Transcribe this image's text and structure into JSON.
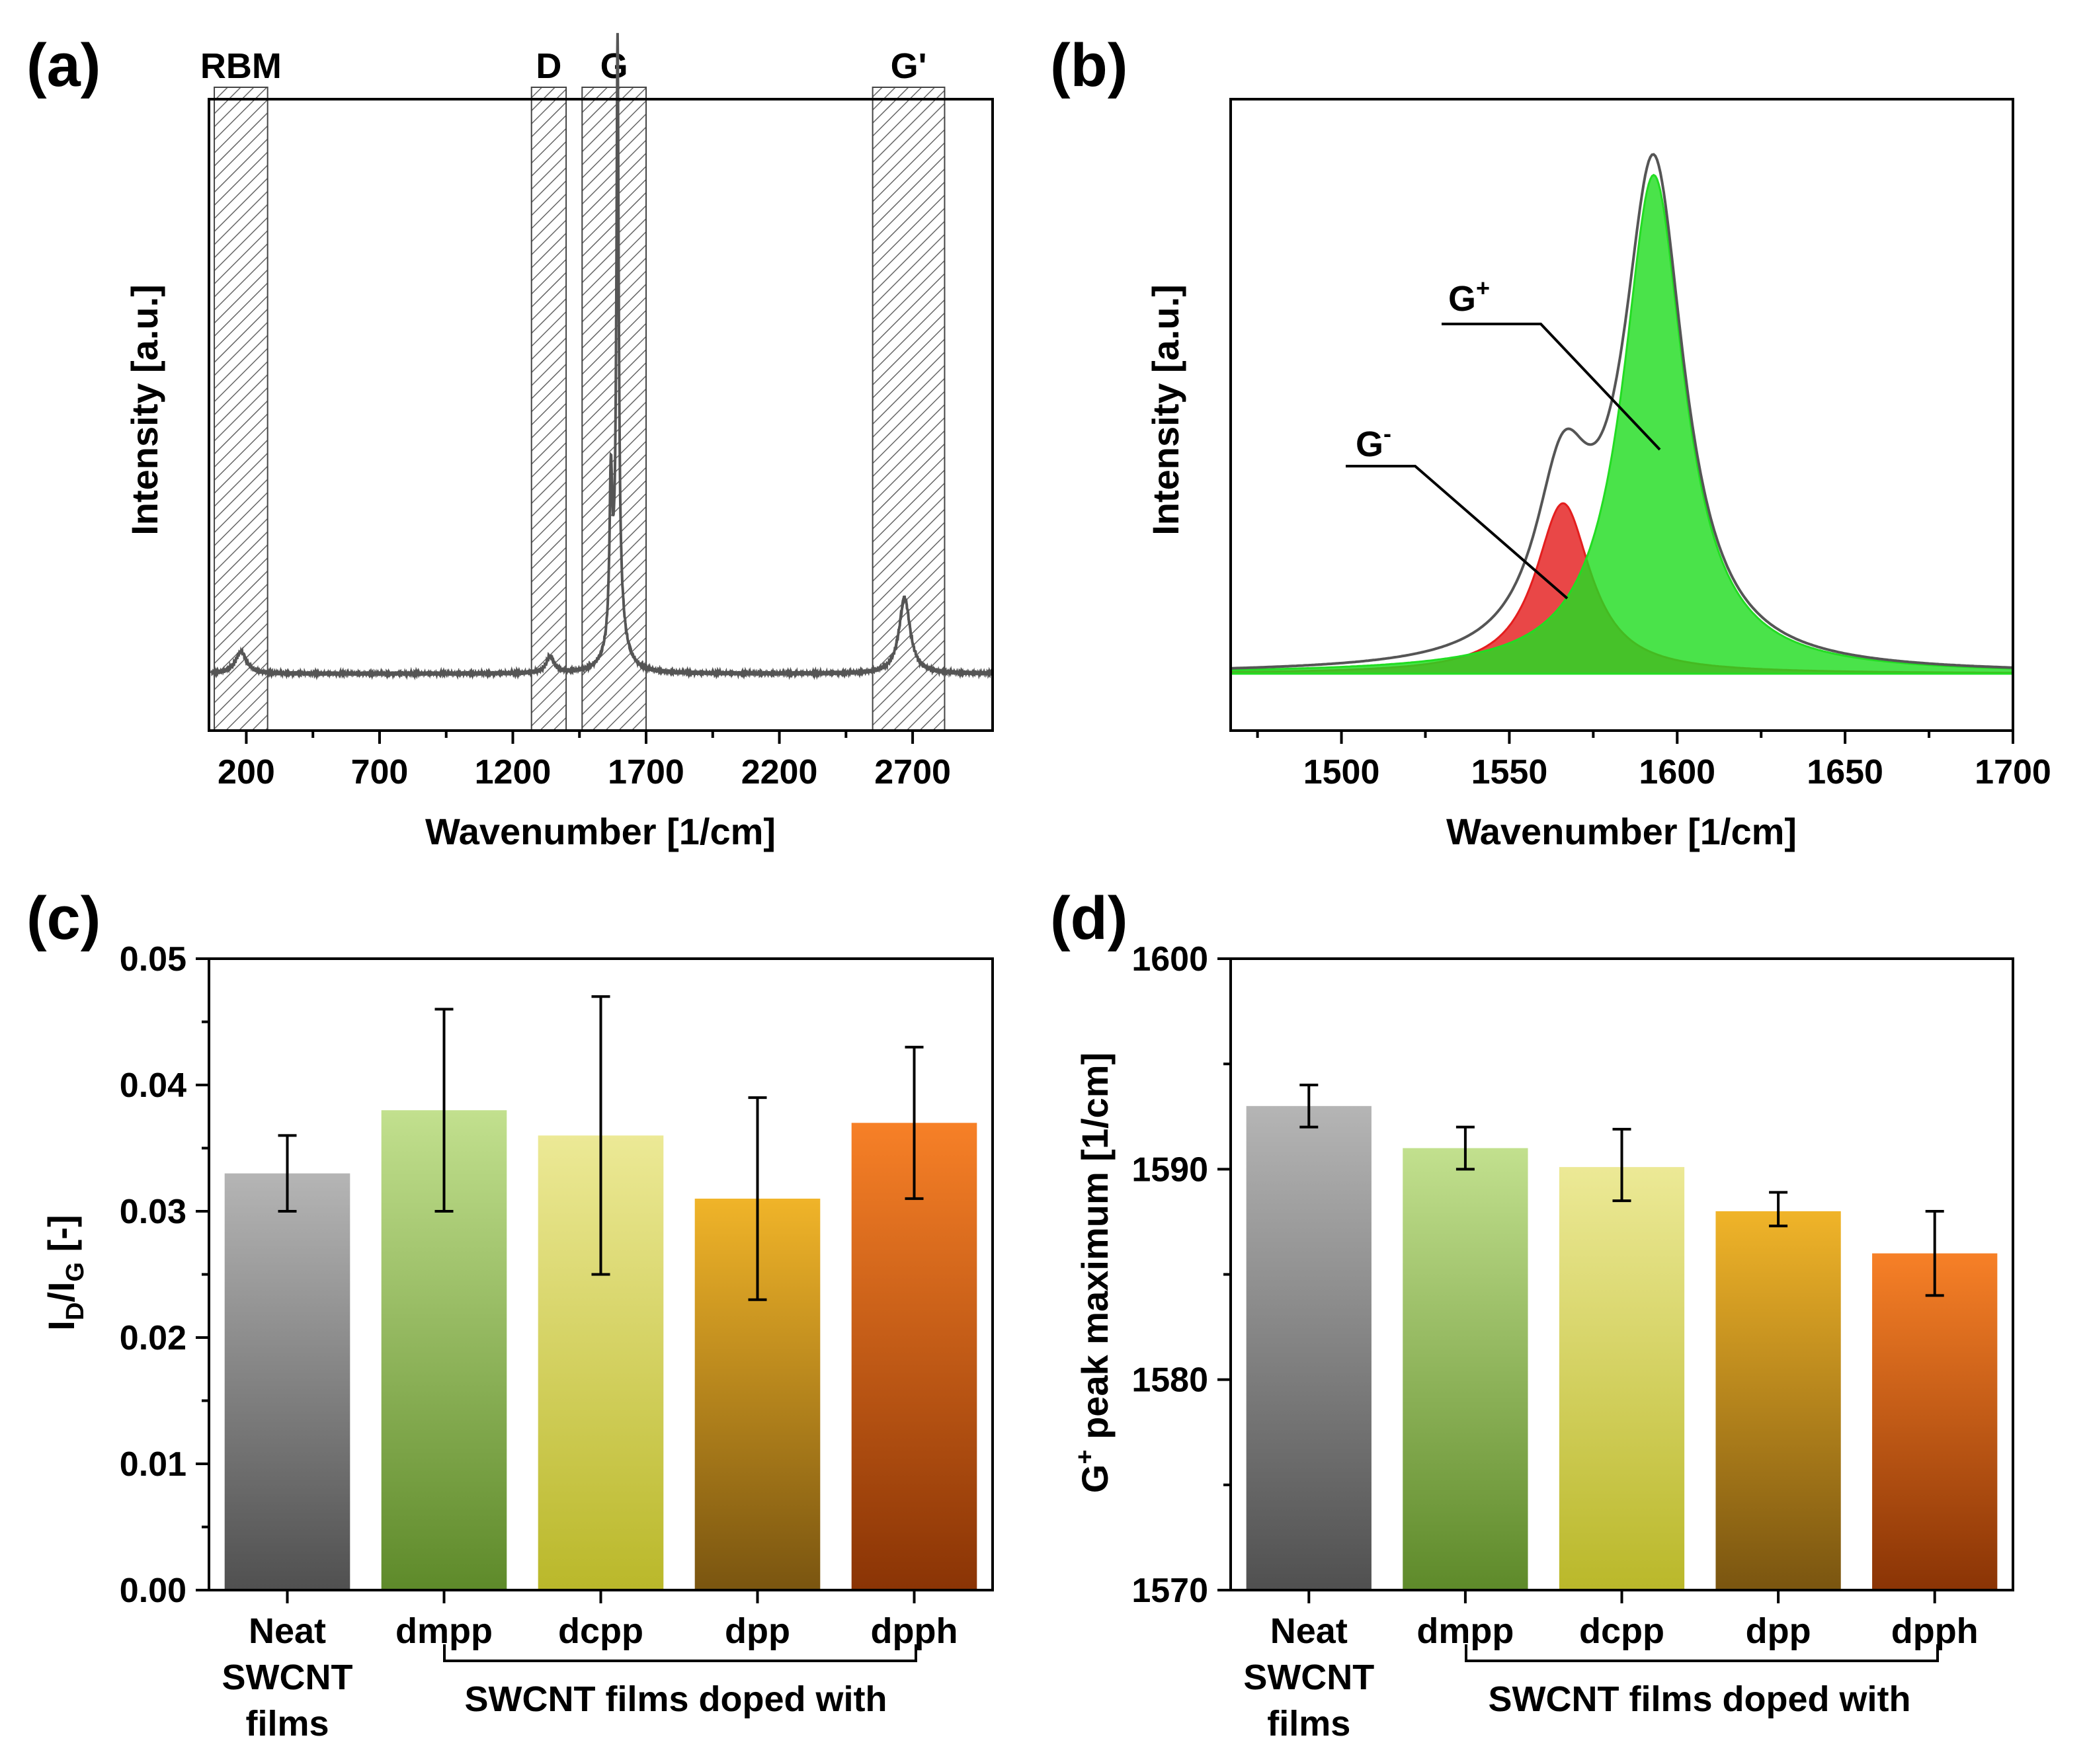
{
  "chart_data": [
    {
      "id": "a",
      "panel_label": "(a)",
      "type": "line",
      "xlabel": "Wavenumber [1/cm]",
      "ylabel": "Intensity [a.u.]",
      "xlim": [
        60,
        3000
      ],
      "ylim": [
        0,
        1.0
      ],
      "xticks": [
        200,
        700,
        1200,
        1700,
        2200,
        2700
      ],
      "shaded_regions": [
        {
          "label": "RBM",
          "x0": 80,
          "x1": 280
        },
        {
          "label": "D",
          "x0": 1270,
          "x1": 1400
        },
        {
          "label": "G",
          "x0": 1460,
          "x1": 1700
        },
        {
          "label": "G'",
          "x0": 2550,
          "x1": 2820
        }
      ],
      "peaks": [
        {
          "x": 180,
          "height": 0.035,
          "width": 25
        },
        {
          "x": 1340,
          "height": 0.025,
          "width": 18
        },
        {
          "x": 1568,
          "height": 0.24,
          "width": 6
        },
        {
          "x": 1593,
          "height": 0.88,
          "width": 5
        },
        {
          "x": 1590,
          "height": 0.12,
          "width": 28
        },
        {
          "x": 2670,
          "height": 0.12,
          "width": 25
        }
      ],
      "baseline": 0.09
    },
    {
      "id": "b",
      "panel_label": "(b)",
      "type": "area",
      "xlabel": "Wavenumber [1/cm]",
      "ylabel": "Intensity [a.u.]",
      "xlim": [
        1467,
        1700
      ],
      "ylim": [
        0,
        1.0
      ],
      "xticks": [
        1500,
        1550,
        1600,
        1650,
        1700
      ],
      "baseline": 0.09,
      "series": [
        {
          "name": "G-",
          "center": 1566,
          "height": 0.27,
          "hwhm": 10,
          "color": "#e41e1e"
        },
        {
          "name": "G+",
          "center": 1593,
          "height": 0.79,
          "hwhm": 11,
          "color": "#22dd22"
        }
      ],
      "annotations": [
        {
          "label": "G",
          "sup": "+"
        },
        {
          "label": "G",
          "sup": "-"
        }
      ]
    },
    {
      "id": "c",
      "panel_label": "(c)",
      "type": "bar",
      "ylabel_main": "I",
      "ylabel_sub1": "D",
      "ylabel_mid": "/I",
      "ylabel_sub2": "G",
      "ylabel_end": " [-]",
      "ylim": [
        0,
        0.05
      ],
      "yticks": [
        "0.00",
        "0.01",
        "0.02",
        "0.03",
        "0.04",
        "0.05"
      ],
      "categories": [
        "Neat SWCNT films",
        "dmpp",
        "dcpp",
        "dpp",
        "dpph"
      ],
      "values": [
        0.033,
        0.038,
        0.036,
        0.031,
        0.037
      ],
      "err_low": [
        0.03,
        0.03,
        0.025,
        0.023,
        0.031
      ],
      "err_high": [
        0.036,
        0.046,
        0.047,
        0.039,
        0.043
      ],
      "group_label": "SWCNT films doped with"
    },
    {
      "id": "d",
      "panel_label": "(d)",
      "type": "bar",
      "ylabel_pre": "G",
      "ylabel_sup": "+",
      "ylabel_post": " peak maximum [1/cm]",
      "ylim": [
        1570,
        1600
      ],
      "yticks": [
        "1570",
        "1580",
        "1590",
        "1600"
      ],
      "categories": [
        "Neat SWCNT films",
        "dmpp",
        "dcpp",
        "dpp",
        "dpph"
      ],
      "values": [
        1593,
        1591,
        1590.1,
        1588,
        1586
      ],
      "err_low": [
        1592,
        1590,
        1588.5,
        1587.3,
        1584
      ],
      "err_high": [
        1594,
        1592,
        1591.9,
        1588.9,
        1588
      ],
      "group_label": "SWCNT films doped with"
    }
  ],
  "bar_colors": [
    {
      "top": "#b5b5b5",
      "bottom": "#505050"
    },
    {
      "top": "#c2e08e",
      "bottom": "#5e8a2a"
    },
    {
      "top": "#ece996",
      "bottom": "#bab82a"
    },
    {
      "top": "#f0b429",
      "bottom": "#7a5510"
    },
    {
      "top": "#f78027",
      "bottom": "#8a3405"
    }
  ],
  "neat_label_lines": [
    "Neat",
    "SWCNT",
    "films"
  ]
}
